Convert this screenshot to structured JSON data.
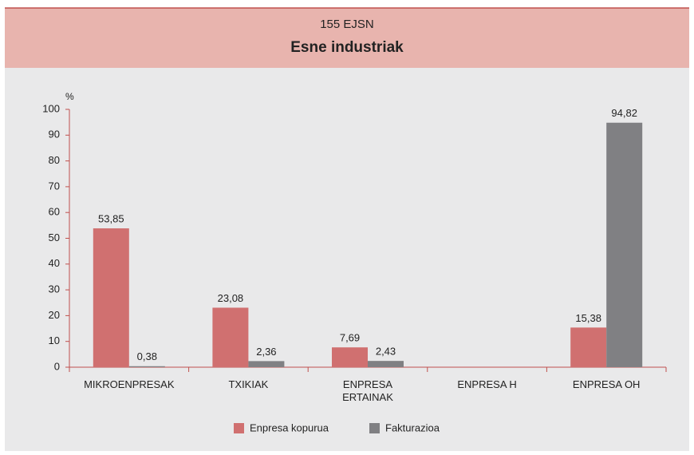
{
  "chart_data": {
    "type": "bar",
    "title": "155 EJSN",
    "subtitle": "Esne industriak",
    "y_label": "%",
    "categories": [
      "MIKROENPRESAK",
      "TXIKIAK",
      "ENPRESA\nERTAINAK",
      "ENPRESA H",
      "ENPRESA OH"
    ],
    "series": [
      {
        "name": "Enpresa kopurua",
        "color": "#d07070",
        "values": [
          53.85,
          23.08,
          7.69,
          null,
          15.38
        ],
        "value_labels": [
          "53,85",
          "23,08",
          "7,69",
          null,
          "15,38"
        ]
      },
      {
        "name": "Fakturazioa",
        "color": "#808083",
        "values": [
          0.38,
          2.36,
          2.43,
          null,
          94.82
        ],
        "value_labels": [
          "0,38",
          "2,36",
          "2,43",
          null,
          "94,82"
        ]
      }
    ],
    "ylim": [
      0,
      100
    ],
    "yticks": [
      0,
      10,
      20,
      30,
      40,
      50,
      60,
      70,
      80,
      90,
      100
    ],
    "grid": false,
    "legend": "bottom"
  }
}
